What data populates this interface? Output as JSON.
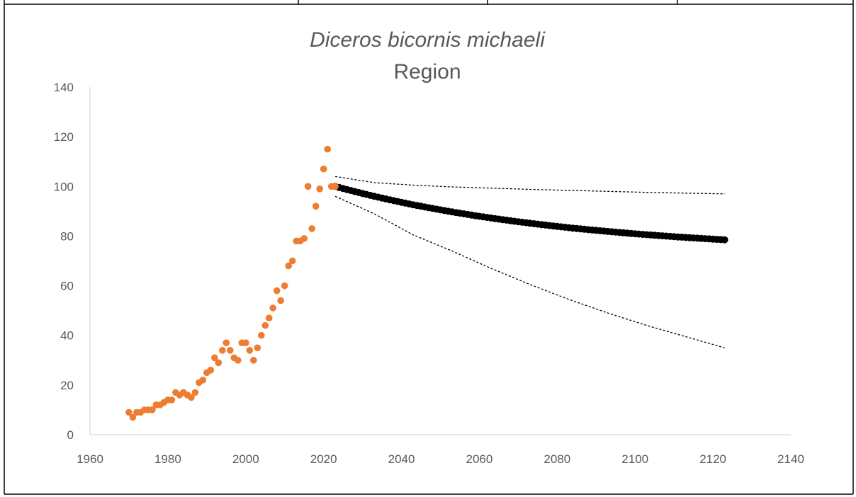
{
  "chart_data": {
    "type": "scatter",
    "title": "Diceros bicornis michaeli",
    "subtitle": "Region",
    "xlabel": "",
    "ylabel": "",
    "xlim": [
      1960,
      2140
    ],
    "ylim": [
      0,
      140
    ],
    "x_ticks": [
      "1960",
      "1980",
      "2000",
      "2020",
      "2040",
      "2060",
      "2080",
      "2100",
      "2120",
      "2140"
    ],
    "y_ticks": [
      "0",
      "20",
      "40",
      "60",
      "80",
      "100",
      "120",
      "140"
    ],
    "grid": false,
    "legend": "none",
    "colors": {
      "observed": "#ED7D31",
      "projection": "#000000",
      "bounds": "#000000",
      "axis": "#D9D9D9",
      "text": "#595959"
    },
    "series": [
      {
        "kind": "observed",
        "x": [
          1970,
          1971,
          1972,
          1973,
          1974,
          1975,
          1976,
          1977,
          1978,
          1979,
          1980,
          1981,
          1982,
          1983,
          1984,
          1985,
          1986,
          1987,
          1988,
          1989,
          1990,
          1991,
          1992,
          1993,
          1994,
          1995,
          1996,
          1997,
          1998,
          1999,
          2000,
          2001,
          2002,
          2003,
          2004,
          2005,
          2006,
          2007,
          2008,
          2009,
          2010,
          2011,
          2012,
          2013,
          2014,
          2015,
          2016,
          2017,
          2018,
          2019,
          2020,
          2021,
          2022,
          2023
        ],
        "y": [
          9,
          7,
          9,
          9,
          10,
          10,
          10,
          12,
          12,
          13,
          14,
          14,
          17,
          16,
          17,
          16,
          15,
          17,
          21,
          22,
          25,
          26,
          31,
          29,
          34,
          37,
          34,
          31,
          30,
          37,
          37,
          34,
          30,
          35,
          40,
          44,
          47,
          51,
          58,
          54,
          60,
          68,
          70,
          78,
          78,
          79,
          100,
          83,
          92,
          99,
          107,
          115,
          100,
          100
        ]
      },
      {
        "kind": "projection",
        "x_start": 2023,
        "x_end": 2123,
        "y_start": 100,
        "y_end": 78.5
      },
      {
        "kind": "upper-bound",
        "x": [
          2023,
          2033,
          2043,
          2053,
          2063,
          2073,
          2083,
          2093,
          2103,
          2113,
          2123
        ],
        "y": [
          104,
          101.5,
          100.5,
          99.8,
          99.3,
          98.8,
          98.4,
          98,
          97.6,
          97.3,
          97
        ]
      },
      {
        "kind": "lower-bound",
        "x": [
          2023,
          2033,
          2043,
          2053,
          2063,
          2073,
          2083,
          2093,
          2103,
          2113,
          2123
        ],
        "y": [
          96,
          89,
          80.5,
          74,
          67,
          60.5,
          54.5,
          49,
          44,
          39.5,
          35
        ]
      }
    ]
  }
}
